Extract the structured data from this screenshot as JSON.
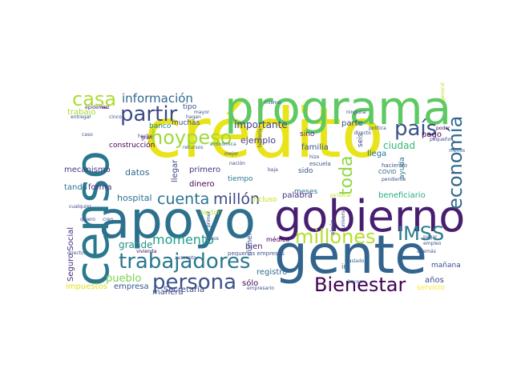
{
  "words": [
    {
      "text": "crédito",
      "color": "#e8e419"
    },
    {
      "text": "apoyo",
      "color": "#2d708e"
    },
    {
      "text": "gente",
      "color": "#32648e"
    },
    {
      "text": "censo",
      "color": "#2a788e"
    },
    {
      "text": "programa",
      "color": "#5ec962"
    },
    {
      "text": "gobierno",
      "color": "#481f70"
    },
    {
      "text": "trabajadores",
      "color": "#2a788e"
    },
    {
      "text": "hoypeso",
      "color": "#9fda3a"
    },
    {
      "text": "persona",
      "color": "#3b528b"
    },
    {
      "text": "partir",
      "color": "#3e4989"
    },
    {
      "text": "país",
      "color": "#3b528b"
    },
    {
      "text": "millones",
      "color": "#b5de2b"
    },
    {
      "text": "Bienestar",
      "color": "#440154"
    },
    {
      "text": "economía",
      "color": "#31688e"
    },
    {
      "text": "cuenta",
      "color": "#2c728e"
    },
    {
      "text": "casa",
      "color": "#addc30"
    },
    {
      "text": "IMSS",
      "color": "#287c8e"
    },
    {
      "text": "millón",
      "color": "#3e4989"
    },
    {
      "text": "información",
      "color": "#31688e"
    },
    {
      "text": "toda",
      "color": "#90d743"
    },
    {
      "text": "momento",
      "color": "#1f9e89"
    },
    {
      "text": "ciudad",
      "color": "#35b779"
    },
    {
      "text": "importante",
      "color": "#433e85"
    },
    {
      "text": "ejemplo",
      "color": "#443983"
    },
    {
      "text": "hospital",
      "color": "#2c728e"
    },
    {
      "text": "grande",
      "color": "#21918c"
    },
    {
      "text": "pueblo",
      "color": "#7ad151"
    },
    {
      "text": "beneficiario",
      "color": "#25ac82"
    },
    {
      "text": "manera",
      "color": "#3b528b"
    },
    {
      "text": "dinero",
      "color": "#440154"
    },
    {
      "text": "primero",
      "color": "#46327e"
    },
    {
      "text": "llegar",
      "color": "#3e4989"
    },
    {
      "text": "datos",
      "color": "#31688e"
    },
    {
      "text": "tanda",
      "color": "#2a788e"
    },
    {
      "text": "forma",
      "color": "#472d7b"
    },
    {
      "text": "mecanismo",
      "color": "#443983"
    },
    {
      "text": "empresa",
      "color": "#375a8c"
    },
    {
      "text": "impuestos",
      "color": "#dde318"
    },
    {
      "text": "Seguro Social",
      "color": "#472d7b"
    },
    {
      "text": "Secretaría",
      "color": "#3e4989"
    },
    {
      "text": "registro",
      "color": "#2e6e8e"
    },
    {
      "text": "sólo",
      "color": "#440154"
    },
    {
      "text": "bien",
      "color": "#481f70"
    },
    {
      "text": "parte",
      "color": "#3e4989"
    },
    {
      "text": "familia",
      "color": "#3b528b"
    },
    {
      "text": "llega",
      "color": "#2a788e"
    },
    {
      "text": "pago",
      "color": "#440154"
    },
    {
      "text": "meses",
      "color": "#2c728e"
    },
    {
      "text": "sido",
      "color": "#3b528b"
    },
    {
      "text": "palabra",
      "color": "#46327e"
    },
    {
      "text": "ayuda",
      "color": "#2a788e"
    },
    {
      "text": "años",
      "color": "#3e4989"
    },
    {
      "text": "servicio",
      "color": "#fde725"
    },
    {
      "text": "mañana",
      "color": "#3b528b"
    },
    {
      "text": "trabajo",
      "color": "#a5db36"
    },
    {
      "text": "banco",
      "color": "#26828e"
    },
    {
      "text": "muchas",
      "color": "#3e4989"
    },
    {
      "text": "tipo",
      "color": "#3b528b"
    },
    {
      "text": "construcción",
      "color": "#440154"
    },
    {
      "text": "tiempo",
      "color": "#2a788e"
    },
    {
      "text": "sino",
      "color": "#482677"
    },
    {
      "text": "seis",
      "color": "#3e4989"
    },
    {
      "text": "ir",
      "color": "#2c728e"
    },
    {
      "text": "número",
      "color": "#3b528b"
    },
    {
      "text": "médico",
      "color": "#440154"
    },
    {
      "text": "incluso",
      "color": "#c2df23"
    },
    {
      "text": "sector",
      "color": "#b8de29"
    },
    {
      "text": "pequeñas empresas",
      "color": "#3b528b"
    },
    {
      "text": "algún",
      "color": "#3e4989"
    },
    {
      "text": "escuela",
      "color": "#3b528b"
    },
    {
      "text": "COVID",
      "color": "#31688e"
    },
    {
      "text": "haciendo",
      "color": "#3b528b"
    },
    {
      "text": "epidemia",
      "color": "#482677"
    },
    {
      "text": "entregar",
      "color": "#3b528b"
    },
    {
      "text": "vez",
      "color": "#440154"
    },
    {
      "text": "hecho",
      "color": "#3e4989"
    },
    {
      "text": "cinco",
      "color": "#3e4989"
    },
    {
      "text": "mayor",
      "color": "#3b528b"
    },
    {
      "text": "mejor",
      "color": "#3e4989"
    },
    {
      "text": "recursos",
      "color": "#31688e"
    },
    {
      "text": "económica",
      "color": "#2c728e"
    },
    {
      "text": "teorería",
      "color": "#3b528b"
    },
    {
      "text": "baja",
      "color": "#3b528b"
    },
    {
      "text": "nación",
      "color": "#3e4989"
    },
    {
      "text": "mismo",
      "color": "#3b528b"
    },
    {
      "text": "ninguna",
      "color": "#3e4989"
    },
    {
      "text": "política",
      "color": "#3b528b"
    },
    {
      "text": "pequeño",
      "color": "#3e4989"
    },
    {
      "text": "poder",
      "color": "#440154"
    },
    {
      "text": "menos",
      "color": "#31688e"
    },
    {
      "text": "empleo",
      "color": "#3b528b"
    },
    {
      "text": "pagar",
      "color": "#3e4989"
    },
    {
      "text": "caso",
      "color": "#3b528b"
    },
    {
      "text": "casos",
      "color": "#3e4989"
    },
    {
      "text": "primer",
      "color": "#3b528b"
    },
    {
      "text": "director",
      "color": "#3b528b"
    },
    {
      "text": "quiero",
      "color": "#3e4989"
    },
    {
      "text": "creo",
      "color": "#3b528b"
    },
    {
      "text": "cualquier",
      "color": "#3e4989"
    },
    {
      "text": "gran",
      "color": "#440154"
    },
    {
      "text": "hacen",
      "color": "#31688e"
    },
    {
      "text": "empresario",
      "color": "#3b528b"
    },
    {
      "text": "personal",
      "color": "#c2df23"
    },
    {
      "text": "universo",
      "color": "#3e4989"
    },
    {
      "text": "traslado",
      "color": "#31688e"
    },
    {
      "text": "general",
      "color": "#b8de29"
    },
    {
      "text": "directo",
      "color": "#3e4989"
    },
    {
      "text": "pendiente",
      "color": "#3b528b"
    },
    {
      "text": "además",
      "color": "#3b528b"
    },
    {
      "text": "vivienda",
      "color": "#440154"
    },
    {
      "text": "hizo",
      "color": "#3e4989"
    },
    {
      "text": "hagan",
      "color": "#3b528b"
    },
    {
      "text": "aumento",
      "color": "#3e4989"
    }
  ]
}
